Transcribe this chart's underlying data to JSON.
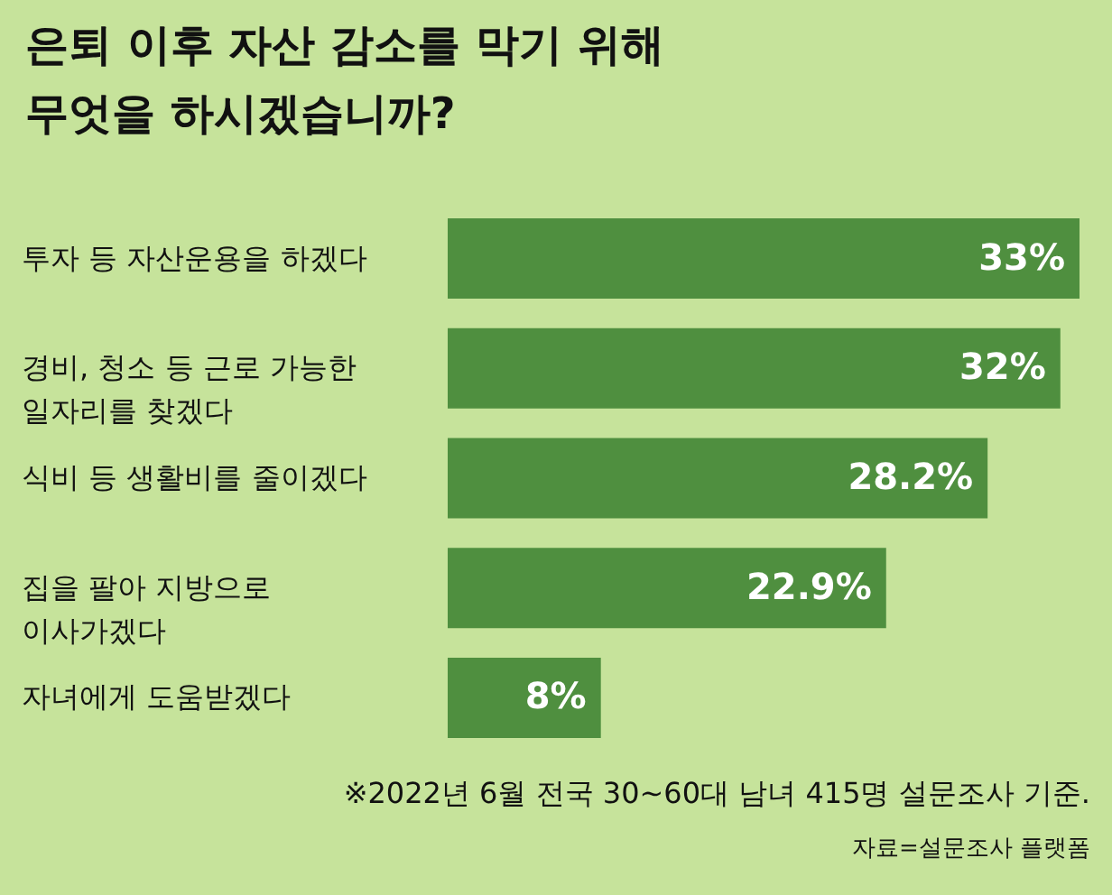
{
  "chart_data": {
    "type": "bar",
    "orientation": "horizontal",
    "title": "은퇴 이후 자산 감소를 막기 위해 무엇을 하시겠습니까?",
    "categories": [
      "투자 등 자산운용을 하겠다",
      "경비, 청소 등 근로 가능한 일자리를 찾겠다",
      "식비 등 생활비를 줄이겠다",
      "집을 팔아 지방으로 이사가겠다",
      "자녀에게 도움받겠다"
    ],
    "values": [
      33,
      32,
      28.2,
      22.9,
      8
    ],
    "value_labels": [
      "33%",
      "32%",
      "28.2%",
      "22.9%",
      "8%"
    ],
    "color": "#4f8f3f",
    "annotations": [
      "※2022년 6월 전국 30~60대 남녀 415명 설문조사 기준.",
      "자료=설문조사 플랫폼"
    ]
  }
}
